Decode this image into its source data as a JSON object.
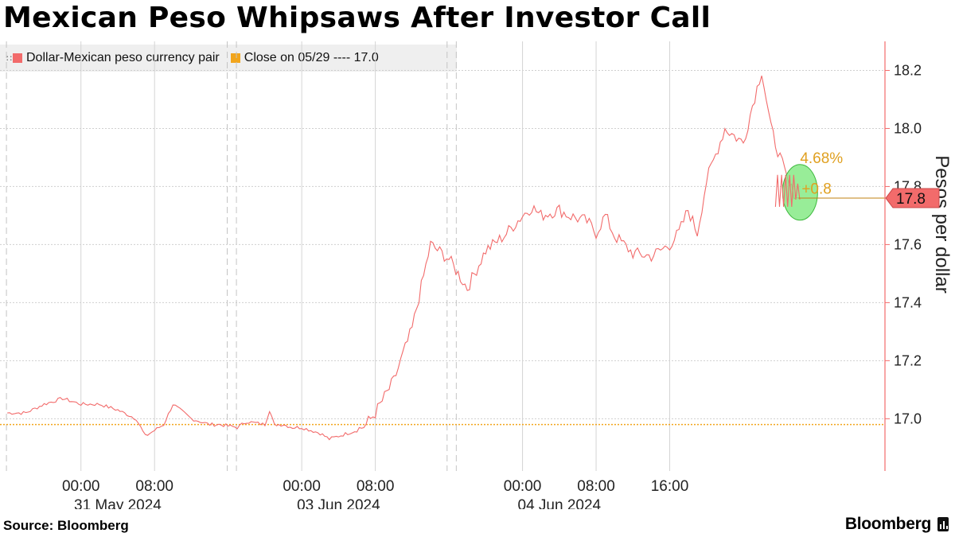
{
  "title": "Mexican Peso Whipsaws After Investor Call",
  "legend": {
    "series_label": "Dollar-Mexican peso currency pair",
    "close_label": "Close on 05/29 ---- 17.0"
  },
  "colors": {
    "series": "#f26b6b",
    "close_line": "#f2a51c",
    "annotation": "#e0a020",
    "highlight_fill": "#7ee87e",
    "axis": "#f26b6b"
  },
  "footer": {
    "source": "Source: Bloomberg",
    "brand": "Bloomberg"
  },
  "chart_data": {
    "type": "line",
    "ylabel": "Pesos per dollar",
    "ylim": [
      16.82,
      18.3
    ],
    "yticks": [
      "18.2",
      "18.0",
      "17.8",
      "17.6",
      "17.4",
      "17.2",
      "17.0"
    ],
    "ytick_values": [
      18.2,
      18.0,
      17.8,
      17.6,
      17.4,
      17.2,
      17.0
    ],
    "xticks_time": [
      "00:00",
      "08:00",
      "00:00",
      "08:00",
      "00:00",
      "08:00",
      "16:00"
    ],
    "xticks_date": [
      "31 May 2024",
      "03 Jun 2024",
      "04 Jun 2024"
    ],
    "series": [
      {
        "name": "Dollar-Mexican peso currency pair",
        "x": [
          -8,
          -6,
          -4,
          -2,
          0,
          2,
          4,
          6,
          7,
          9,
          10,
          12,
          13,
          14,
          15,
          17,
          18,
          20,
          20.5,
          21,
          22,
          23,
          24,
          26,
          27,
          28,
          29,
          30,
          31,
          32,
          34,
          36,
          38,
          40,
          42,
          44,
          46,
          48,
          49,
          50,
          51,
          52,
          53,
          54,
          55,
          56,
          57,
          58,
          60,
          62,
          63,
          64,
          65,
          66,
          67,
          68,
          70,
          72,
          73,
          74,
          75,
          76,
          77,
          78
        ],
        "y": [
          17.02,
          17.02,
          17.05,
          17.07,
          17.05,
          17.05,
          17.03,
          17.0,
          16.94,
          16.98,
          17.05,
          17.0,
          16.99,
          16.98,
          16.98,
          16.97,
          16.99,
          16.98,
          17.03,
          16.98,
          16.98,
          16.97,
          16.97,
          16.95,
          16.93,
          16.94,
          16.95,
          16.96,
          16.98,
          17.02,
          17.13,
          17.31,
          17.6,
          17.55,
          17.45,
          17.58,
          17.63,
          17.7,
          17.73,
          17.7,
          17.71,
          17.72,
          17.7,
          17.69,
          17.68,
          17.64,
          17.7,
          17.63,
          17.57,
          17.56,
          17.58,
          17.6,
          17.64,
          17.72,
          17.64,
          17.82,
          18.0,
          17.95,
          18.08,
          18.2,
          18.0,
          17.9,
          17.8,
          17.76
        ]
      }
    ],
    "reference_line": {
      "label": "Close on 05/29",
      "value": 16.98
    },
    "last_value_label": "17.8",
    "last_value": 17.76,
    "annotation": {
      "percent": "4.68%",
      "change": "+0.8"
    }
  }
}
